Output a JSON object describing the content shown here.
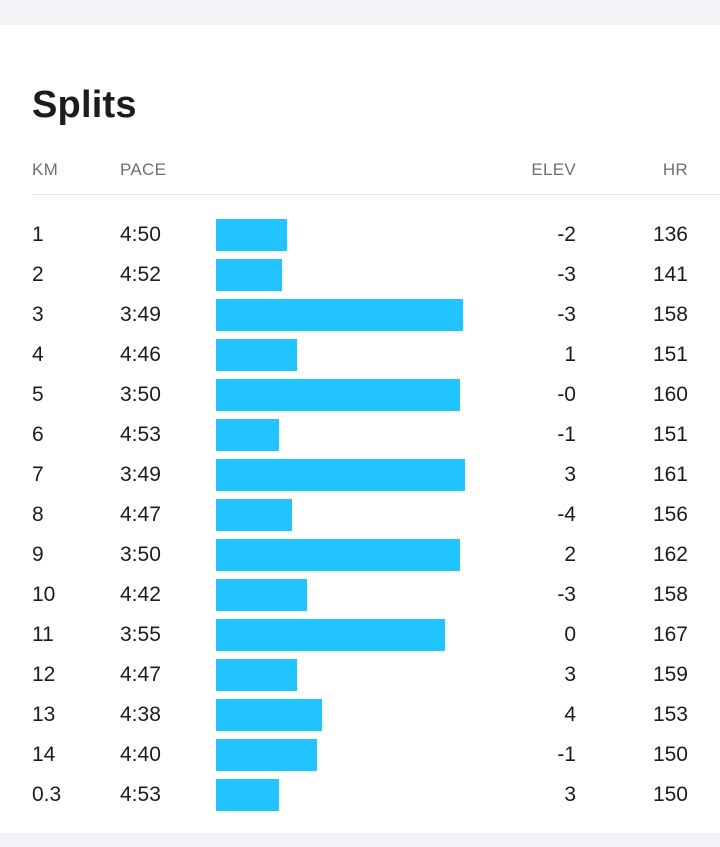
{
  "title": "Splits",
  "columns": {
    "km": "KM",
    "pace": "PACE",
    "elev": "ELEV",
    "hr": "HR"
  },
  "bar_color": "#22c4ff",
  "splits": [
    {
      "km": "1",
      "pace": "4:50",
      "bar_fraction": 0.28,
      "elev": "-2",
      "hr": "136"
    },
    {
      "km": "2",
      "pace": "4:52",
      "bar_fraction": 0.26,
      "elev": "-3",
      "hr": "141"
    },
    {
      "km": "3",
      "pace": "3:49",
      "bar_fraction": 0.98,
      "elev": "-3",
      "hr": "158"
    },
    {
      "km": "4",
      "pace": "4:46",
      "bar_fraction": 0.32,
      "elev": "1",
      "hr": "151"
    },
    {
      "km": "5",
      "pace": "3:50",
      "bar_fraction": 0.97,
      "elev": "-0",
      "hr": "160"
    },
    {
      "km": "6",
      "pace": "4:53",
      "bar_fraction": 0.25,
      "elev": "-1",
      "hr": "151"
    },
    {
      "km": "7",
      "pace": "3:49",
      "bar_fraction": 0.99,
      "elev": "3",
      "hr": "161"
    },
    {
      "km": "8",
      "pace": "4:47",
      "bar_fraction": 0.3,
      "elev": "-4",
      "hr": "156"
    },
    {
      "km": "9",
      "pace": "3:50",
      "bar_fraction": 0.97,
      "elev": "2",
      "hr": "162"
    },
    {
      "km": "10",
      "pace": "4:42",
      "bar_fraction": 0.36,
      "elev": "-3",
      "hr": "158"
    },
    {
      "km": "11",
      "pace": "3:55",
      "bar_fraction": 0.91,
      "elev": "0",
      "hr": "167"
    },
    {
      "km": "12",
      "pace": "4:47",
      "bar_fraction": 0.32,
      "elev": "3",
      "hr": "159"
    },
    {
      "km": "13",
      "pace": "4:38",
      "bar_fraction": 0.42,
      "elev": "4",
      "hr": "153"
    },
    {
      "km": "14",
      "pace": "4:40",
      "bar_fraction": 0.4,
      "elev": "-1",
      "hr": "150"
    },
    {
      "km": "0.3",
      "pace": "4:53",
      "bar_fraction": 0.25,
      "elev": "3",
      "hr": "150"
    }
  ]
}
